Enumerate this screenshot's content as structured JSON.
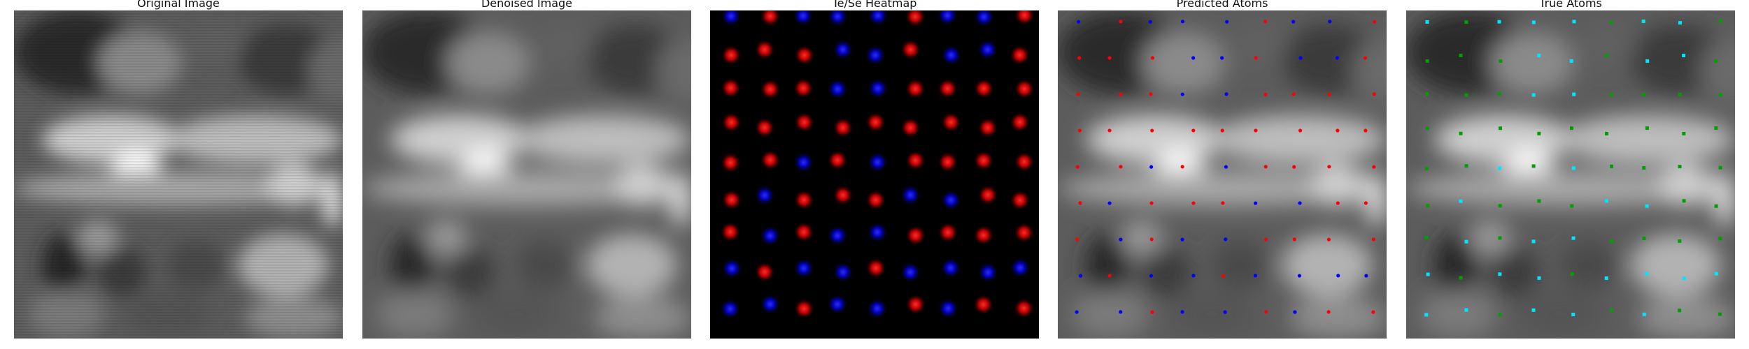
{
  "panels": [
    {
      "id": "original",
      "title": "Original Image"
    },
    {
      "id": "denoised",
      "title": "Denoised Image"
    },
    {
      "id": "heatmap",
      "title": "Te/Se Heatmap"
    },
    {
      "id": "predicted",
      "title": "Predicted Atoms"
    },
    {
      "id": "true",
      "title": "True Atoms"
    }
  ],
  "colors": {
    "te_heatmap": "#ff1a1a",
    "se_heatmap": "#1a1aff",
    "pred_te": "#ff0000",
    "pred_se": "#0000ff",
    "true_te": "#00a000",
    "true_se": "#00e5ff",
    "heatmap_background": "#000000"
  },
  "atom_grid": {
    "columns": 9,
    "rows": 9,
    "types": [
      [
        "se",
        "te",
        "se",
        "se",
        "se",
        "te",
        "se",
        "se",
        "te"
      ],
      [
        "te",
        "te",
        "te",
        "se",
        "se",
        "te",
        "se",
        "se",
        "te"
      ],
      [
        "te",
        "te",
        "te",
        "se",
        "se",
        "te",
        "te",
        "te",
        "te"
      ],
      [
        "te",
        "te",
        "te",
        "te",
        "te",
        "te",
        "te",
        "te",
        "te"
      ],
      [
        "te",
        "te",
        "se",
        "te",
        "se",
        "te",
        "te",
        "te",
        "te"
      ],
      [
        "te",
        "se",
        "te",
        "te",
        "te",
        "se",
        "se",
        "te",
        "te"
      ],
      [
        "te",
        "se",
        "te",
        "se",
        "se",
        "te",
        "te",
        "te",
        "te"
      ],
      [
        "se",
        "te",
        "se",
        "se",
        "te",
        "se",
        "se",
        "se",
        "se"
      ],
      [
        "se",
        "se",
        "te",
        "se",
        "se",
        "te",
        "se",
        "te",
        "te"
      ]
    ]
  }
}
